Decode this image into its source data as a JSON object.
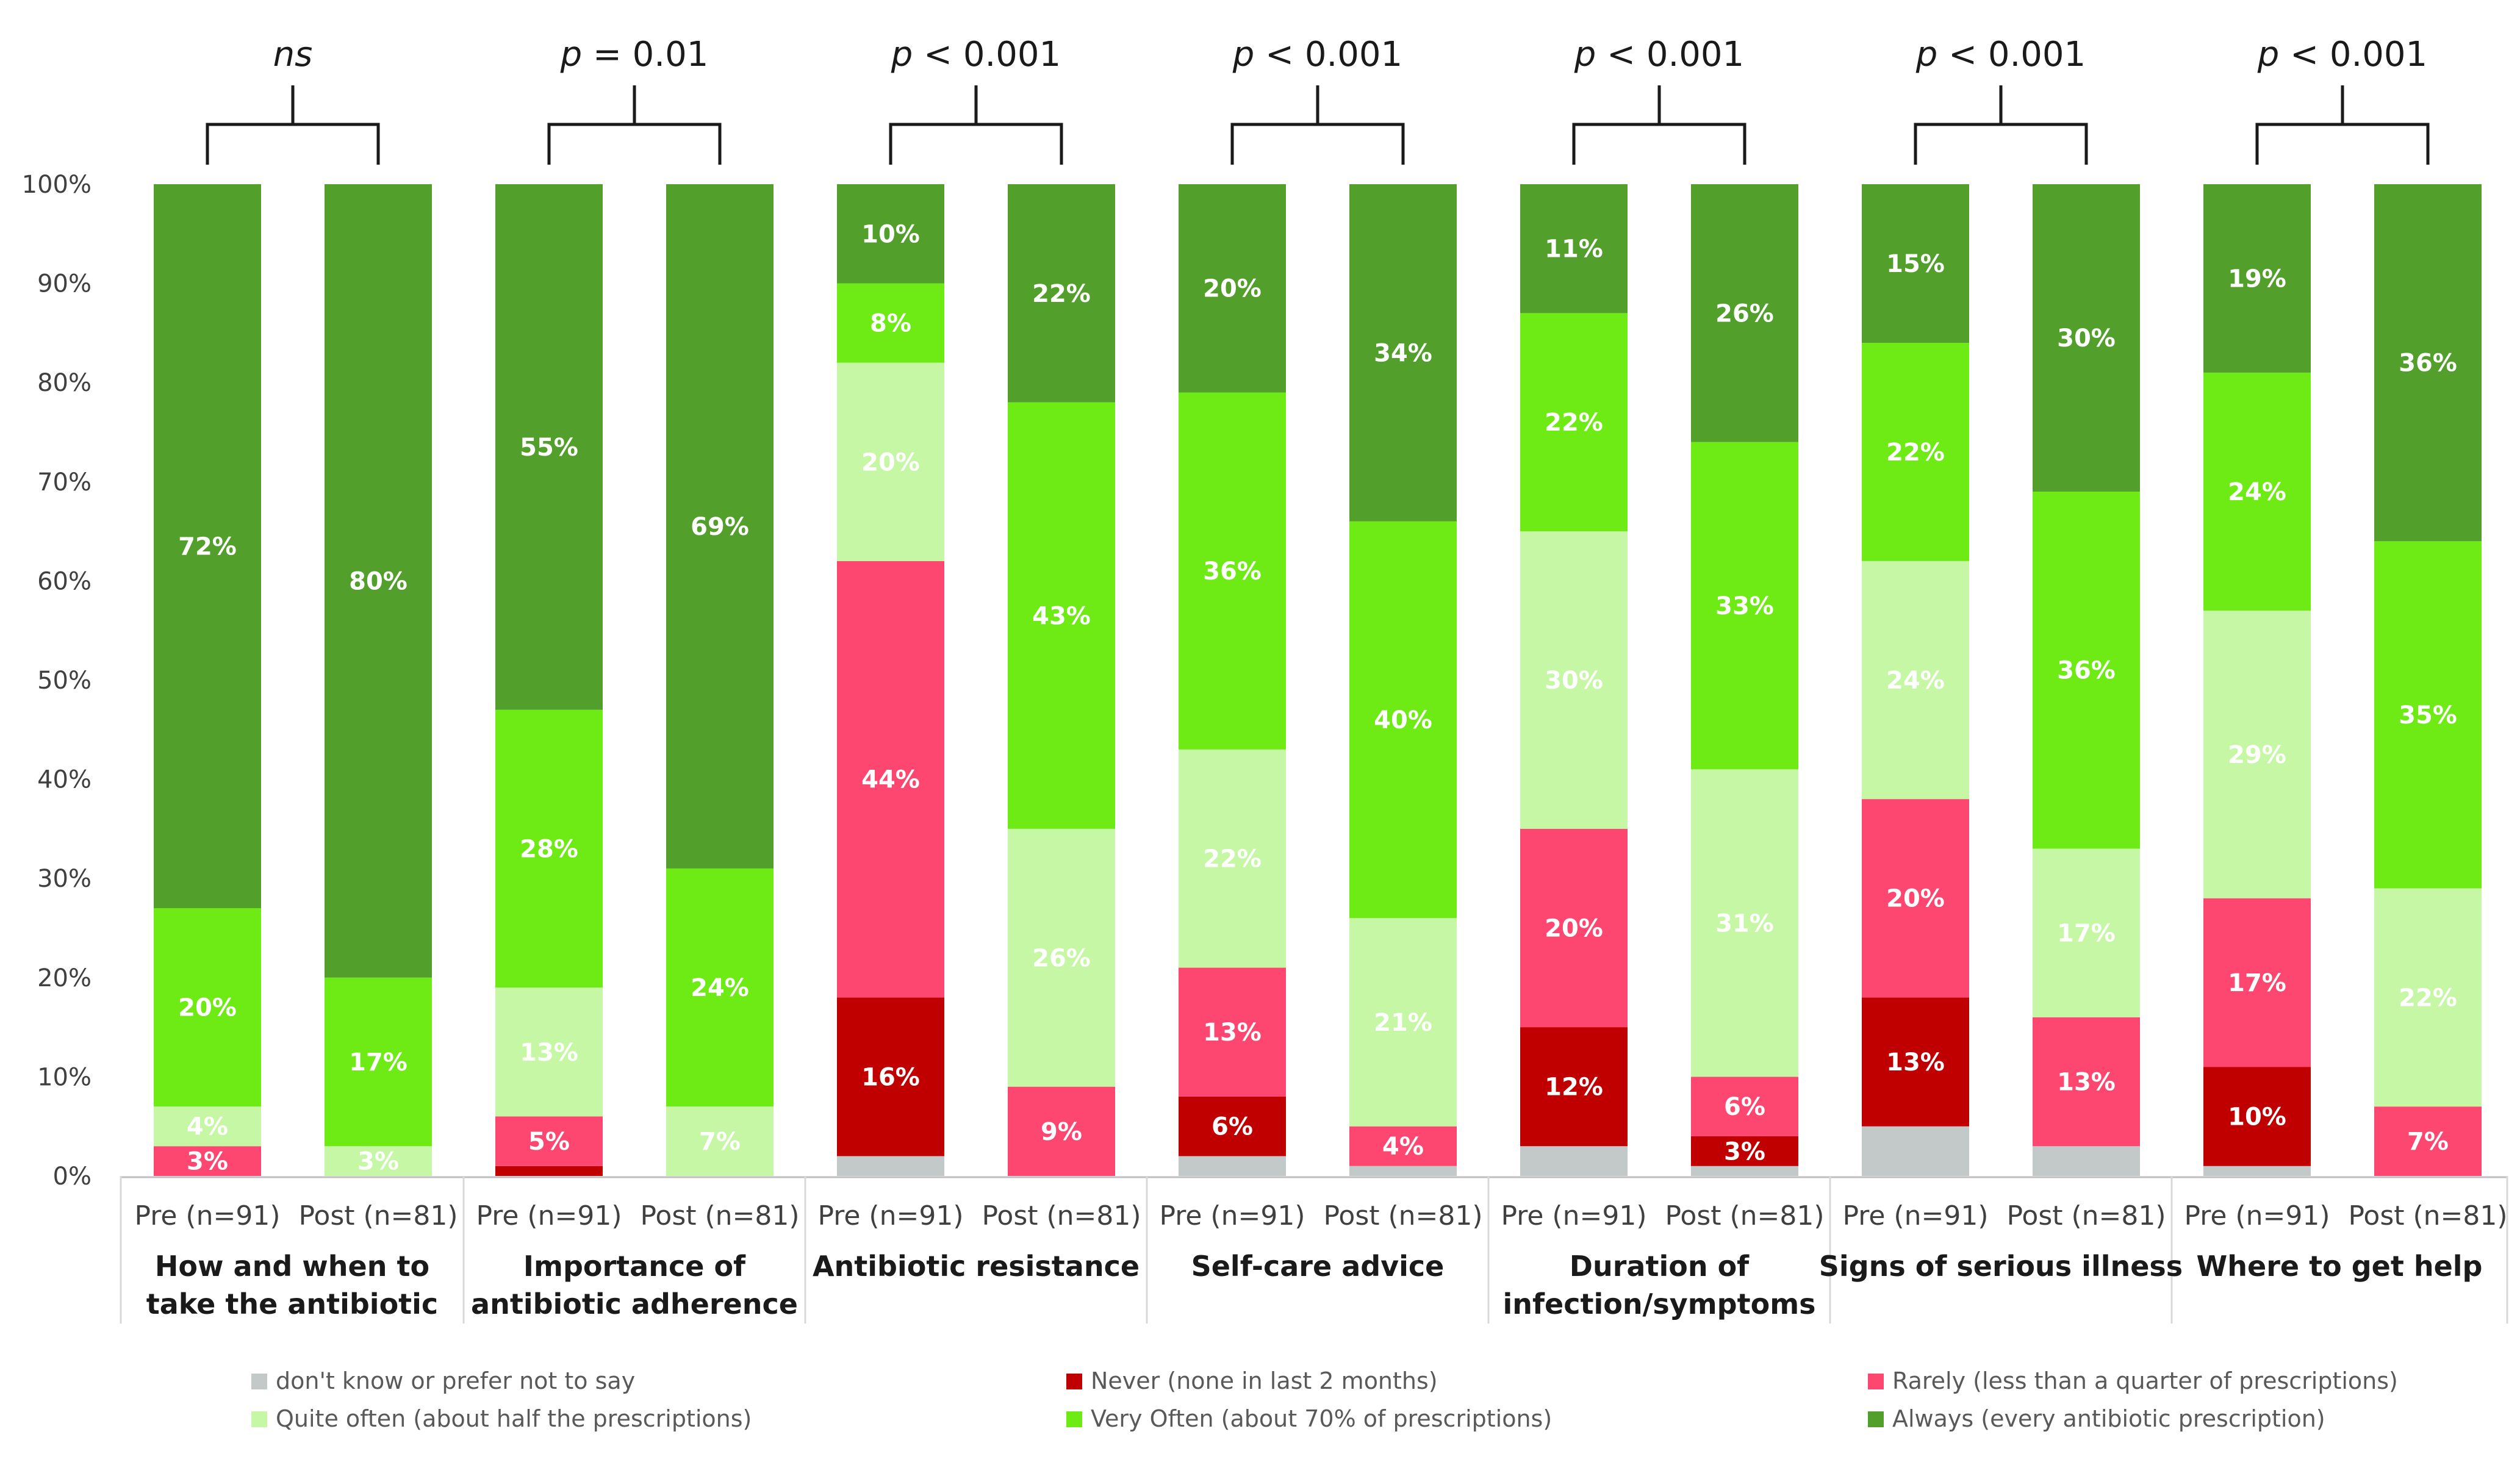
{
  "chart_data": {
    "type": "bar",
    "stacked": true,
    "ylim": [
      0,
      100
    ],
    "y_ticks": [
      "0%",
      "10%",
      "20%",
      "30%",
      "40%",
      "50%",
      "60%",
      "70%",
      "80%",
      "90%",
      "100%"
    ],
    "grid": false,
    "legend_position": "bottom",
    "categories": [
      "Pre (n=91)",
      "Post (n=81)",
      "Pre (n=91)",
      "Post (n=81)",
      "Pre (n=91)",
      "Post (n=81)",
      "Pre (n=91)",
      "Post (n=81)",
      "Pre (n=91)",
      "Post (n=81)",
      "Pre (n=91)",
      "Post (n=81)",
      "Pre (n=91)",
      "Post (n=81)"
    ],
    "groups": [
      {
        "label_lines": [
          "How and when to",
          "take the antibiotic"
        ],
        "p_prefix": "",
        "p_value": "ns"
      },
      {
        "label_lines": [
          "Importance of",
          "antibiotic adherence"
        ],
        "p_prefix": "p",
        "p_value": " = 0.01"
      },
      {
        "label_lines": [
          "Antibiotic resistance"
        ],
        "p_prefix": "p",
        "p_value": " < 0.001"
      },
      {
        "label_lines": [
          "Self-care advice"
        ],
        "p_prefix": "p",
        "p_value": " < 0.001"
      },
      {
        "label_lines": [
          "Duration of",
          "infection/symptoms"
        ],
        "p_prefix": "p",
        "p_value": " < 0.001"
      },
      {
        "label_lines": [
          "Signs of serious illness"
        ],
        "p_prefix": "p",
        "p_value": " < 0.001"
      },
      {
        "label_lines": [
          "Where to get help"
        ],
        "p_prefix": "p",
        "p_value": " < 0.001"
      }
    ],
    "series": [
      {
        "name": "don't know or prefer not to say",
        "color": "#c3c9c9",
        "values": [
          0,
          0,
          0,
          0,
          2,
          0,
          2,
          1,
          3,
          1,
          5,
          3,
          1,
          0
        ]
      },
      {
        "name": "Never (none in last 2 months)",
        "color": "#c00000",
        "values": [
          0,
          0,
          1,
          0,
          16,
          0,
          6,
          0,
          12,
          3,
          13,
          0,
          10,
          0
        ]
      },
      {
        "name": "Rarely (less than a quarter of prescriptions)",
        "color": "#fd4770",
        "values": [
          3,
          0,
          5,
          0,
          44,
          9,
          13,
          4,
          20,
          6,
          20,
          13,
          17,
          7
        ]
      },
      {
        "name": "Quite often (about half the prescriptions)",
        "color": "#c6f7a4",
        "values": [
          4,
          3,
          13,
          7,
          20,
          26,
          22,
          21,
          30,
          31,
          24,
          17,
          29,
          22
        ]
      },
      {
        "name": "Very Often (about 70% of prescriptions)",
        "color": "#6eea14",
        "values": [
          20,
          17,
          28,
          24,
          8,
          43,
          36,
          40,
          22,
          33,
          22,
          36,
          24,
          35
        ]
      },
      {
        "name": "Always (every antibiotic prescription)",
        "color": "#52a02b",
        "values": [
          72,
          80,
          55,
          69,
          10,
          22,
          20,
          34,
          11,
          26,
          15,
          30,
          19,
          36
        ]
      }
    ],
    "labels": [
      [
        "",
        "",
        "",
        "",
        "",
        "",
        "",
        "",
        "",
        "",
        "",
        "",
        "",
        ""
      ],
      [
        "",
        "",
        "",
        "",
        "16%",
        "",
        "6%",
        "",
        "12%",
        "3%",
        "13%",
        "",
        "10%",
        ""
      ],
      [
        "3%",
        "",
        "5%",
        "",
        "44%",
        "9%",
        "13%",
        "4%",
        "20%",
        "6%",
        "20%",
        "13%",
        "17%",
        "7%"
      ],
      [
        "4%",
        "3%",
        "13%",
        "7%",
        "20%",
        "26%",
        "22%",
        "21%",
        "30%",
        "31%",
        "24%",
        "17%",
        "29%",
        "22%"
      ],
      [
        "20%",
        "17%",
        "28%",
        "24%",
        "8%",
        "43%",
        "36%",
        "40%",
        "22%",
        "33%",
        "22%",
        "36%",
        "24%",
        "35%"
      ],
      [
        "72%",
        "80%",
        "55%",
        "69%",
        "10%",
        "22%",
        "20%",
        "34%",
        "11%",
        "26%",
        "15%",
        "30%",
        "19%",
        "36%"
      ]
    ]
  }
}
